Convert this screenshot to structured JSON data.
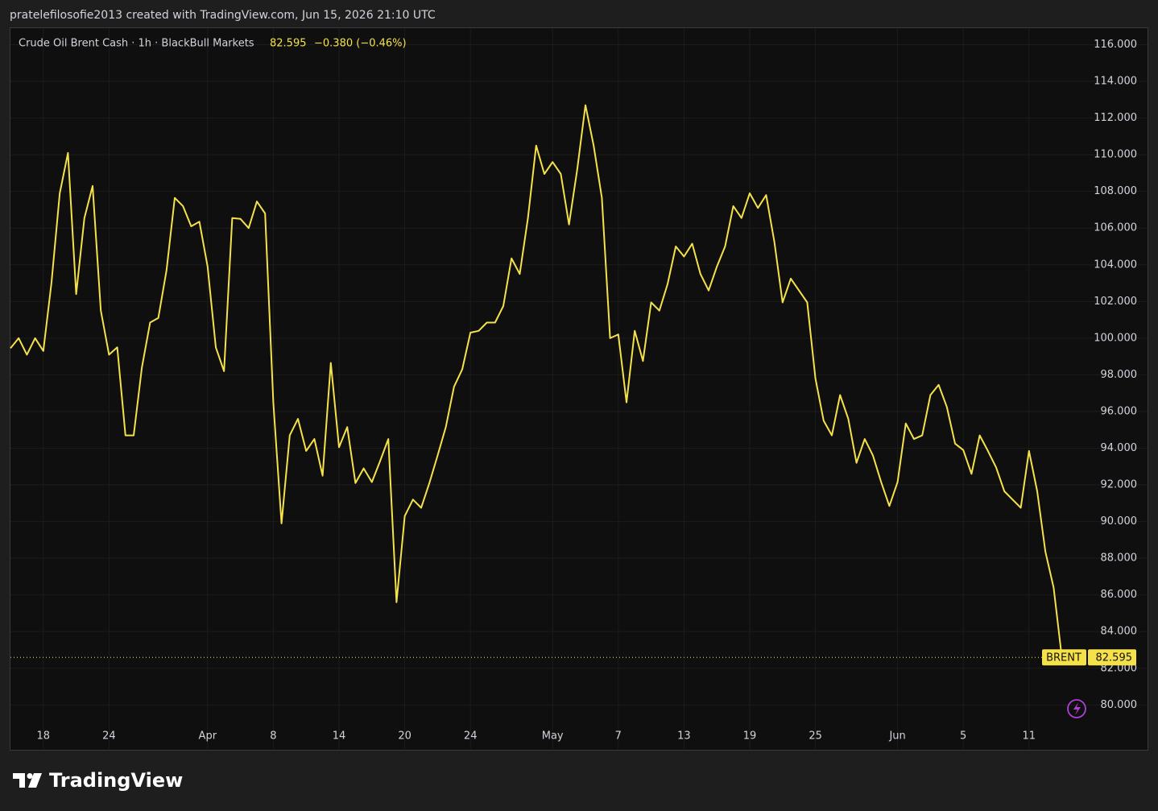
{
  "caption": "pratelefilosofie2013 created with TradingView.com, Jun 15, 2026 21:10 UTC",
  "brand": "TradingView",
  "chart_data": {
    "type": "line",
    "title": "Crude Oil Brent Cash · 1h · BlackBull Markets",
    "last_price": 82.595,
    "change": "−0.380 (−0.46%)",
    "price_line": {
      "symbol": "BRENT",
      "value": 82.595
    },
    "grid": true,
    "categories": [
      null,
      null,
      null,
      null,
      "18",
      null,
      null,
      null,
      null,
      null,
      null,
      null,
      "24",
      null,
      null,
      null,
      null,
      null,
      null,
      null,
      null,
      null,
      null,
      null,
      "Apr",
      null,
      null,
      null,
      null,
      null,
      null,
      null,
      "8",
      null,
      null,
      null,
      null,
      null,
      null,
      null,
      "14",
      null,
      null,
      null,
      null,
      null,
      null,
      null,
      "20",
      null,
      null,
      null,
      null,
      null,
      null,
      null,
      "24",
      null,
      null,
      null,
      null,
      null,
      null,
      null,
      null,
      null,
      "May",
      null,
      null,
      null,
      null,
      null,
      null,
      null,
      "7",
      null,
      null,
      null,
      null,
      null,
      null,
      null,
      "13",
      null,
      null,
      null,
      null,
      null,
      null,
      null,
      "19",
      null,
      null,
      null,
      null,
      null,
      null,
      null,
      "25",
      null,
      null,
      null,
      null,
      null,
      null,
      null,
      null,
      null,
      "Jun",
      null,
      null,
      null,
      null,
      null,
      null,
      null,
      "5",
      null,
      null,
      null,
      null,
      null,
      null,
      null,
      "11",
      null,
      null,
      null,
      null
    ],
    "series": [
      {
        "name": "Crude Oil Brent Cash · 1h · BlackBull Markets",
        "color": "#f5e14a",
        "values": [
          99.45,
          100.0,
          99.1,
          100.0,
          99.3,
          103.05,
          107.9,
          110.1,
          102.4,
          106.55,
          108.3,
          101.5,
          99.1,
          99.5,
          94.7,
          94.7,
          98.4,
          100.85,
          101.1,
          103.7,
          107.65,
          107.2,
          106.1,
          106.35,
          103.9,
          99.5,
          98.2,
          106.55,
          106.5,
          106.0,
          107.45,
          106.8,
          96.5,
          89.9,
          94.7,
          95.6,
          93.85,
          94.5,
          92.5,
          98.65,
          94.05,
          95.15,
          92.1,
          92.9,
          92.15,
          93.3,
          94.5,
          85.6,
          90.3,
          91.2,
          90.75,
          92.1,
          93.6,
          95.15,
          97.35,
          98.3,
          100.3,
          100.4,
          100.85,
          100.85,
          101.75,
          104.35,
          103.5,
          106.55,
          110.5,
          108.95,
          109.6,
          108.95,
          106.2,
          109.2,
          112.7,
          110.5,
          107.65,
          100.0,
          100.2,
          96.5,
          100.4,
          98.75,
          101.95,
          101.5,
          102.95,
          105.0,
          104.45,
          105.15,
          103.5,
          102.6,
          103.9,
          105.0,
          107.2,
          106.55,
          107.9,
          107.1,
          107.8,
          105.25,
          101.95,
          103.25,
          102.6,
          101.95,
          97.8,
          95.5,
          94.7,
          96.9,
          95.6,
          93.2,
          94.5,
          93.6,
          92.15,
          90.85,
          92.15,
          95.35,
          94.5,
          94.7,
          96.9,
          97.45,
          96.25,
          94.25,
          93.9,
          92.6,
          94.7,
          93.85,
          92.95,
          91.65,
          91.2,
          90.75,
          93.85,
          91.65,
          88.35,
          86.4,
          82.595
        ]
      }
    ],
    "ylim": [
      77.6,
      116.9
    ],
    "yticks": [
      {
        "value": 80,
        "label": "80.000"
      },
      {
        "value": 82,
        "label": "82.000"
      },
      {
        "value": 84,
        "label": "84.000"
      },
      {
        "value": 86,
        "label": "86.000"
      },
      {
        "value": 88,
        "label": "88.000"
      },
      {
        "value": 90,
        "label": "90.000"
      },
      {
        "value": 92,
        "label": "92.000"
      },
      {
        "value": 94,
        "label": "94.000"
      },
      {
        "value": 96,
        "label": "96.000"
      },
      {
        "value": 98,
        "label": "98.000"
      },
      {
        "value": 100,
        "label": "100.000"
      },
      {
        "value": 102,
        "label": "102.000"
      },
      {
        "value": 104,
        "label": "104.000"
      },
      {
        "value": 106,
        "label": "106.000"
      },
      {
        "value": 108,
        "label": "108.000"
      },
      {
        "value": 110,
        "label": "110.000"
      },
      {
        "value": 112,
        "label": "112.000"
      },
      {
        "value": 114,
        "label": "114.000"
      },
      {
        "value": 116,
        "label": "116.000"
      }
    ]
  }
}
